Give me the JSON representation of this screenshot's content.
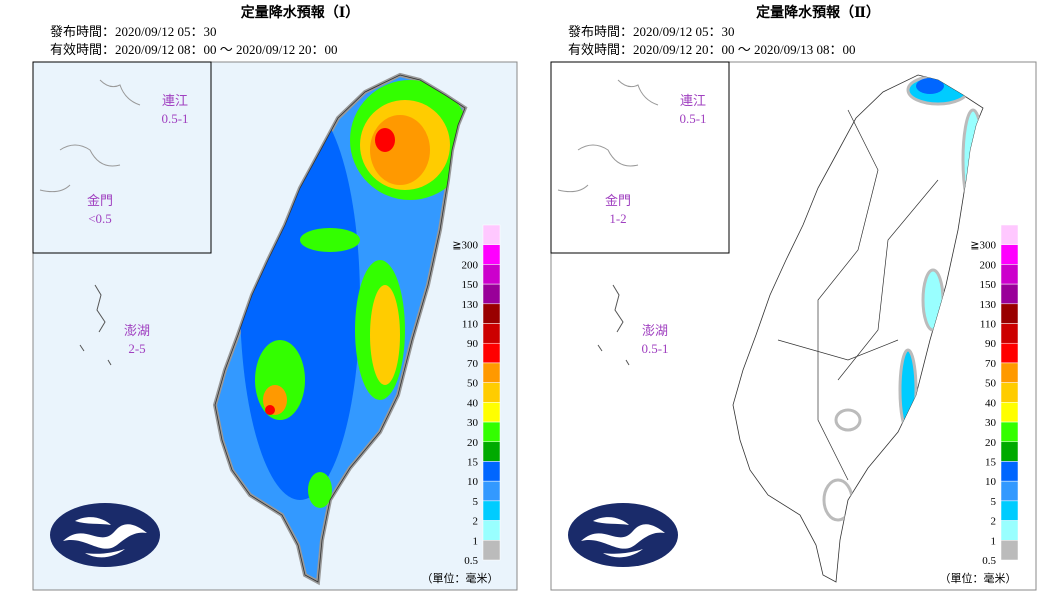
{
  "panels": [
    {
      "title": "定量降水預報（Ⅰ）",
      "issued": "發布時間：2020/09/12 05：30",
      "valid": "有效時間：2020/09/12 08：00 ～ 2020/09/12 20：00",
      "islands": [
        {
          "name": "連江",
          "amount": "0.5-1"
        },
        {
          "name": "金門",
          "amount": "<0.5"
        },
        {
          "name": "澎湖",
          "amount": "2-5"
        }
      ]
    },
    {
      "title": "定量降水預報（Ⅱ）",
      "issued": "發布時間：2020/09/12 05：30",
      "valid": "有效時間：2020/09/12 20：00 ～ 2020/09/13 08：00",
      "islands": [
        {
          "name": "連江",
          "amount": "0.5-1"
        },
        {
          "name": "金門",
          "amount": "1-2"
        },
        {
          "name": "澎湖",
          "amount": "0.5-1"
        }
      ]
    }
  ],
  "legend": {
    "levels": [
      {
        "label": "≧300",
        "color": "#ffc8ff"
      },
      {
        "label": "200",
        "color": "#ff00ff"
      },
      {
        "label": "150",
        "color": "#cc00cc"
      },
      {
        "label": "130",
        "color": "#990099"
      },
      {
        "label": "110",
        "color": "#990000"
      },
      {
        "label": "90",
        "color": "#cc0000"
      },
      {
        "label": "70",
        "color": "#ff0000"
      },
      {
        "label": "50",
        "color": "#ff9900"
      },
      {
        "label": "40",
        "color": "#ffcc00"
      },
      {
        "label": "30",
        "color": "#ffff00"
      },
      {
        "label": "20",
        "color": "#33ff00"
      },
      {
        "label": "15",
        "color": "#00aa00"
      },
      {
        "label": "10",
        "color": "#0066ff"
      },
      {
        "label": "5",
        "color": "#3399ff"
      },
      {
        "label": "2",
        "color": "#00ccff"
      },
      {
        "label": "1",
        "color": "#99ffff"
      },
      {
        "label": "0.5",
        "color": "#bbbbbb"
      }
    ],
    "unit": "（單位：毫米）"
  }
}
